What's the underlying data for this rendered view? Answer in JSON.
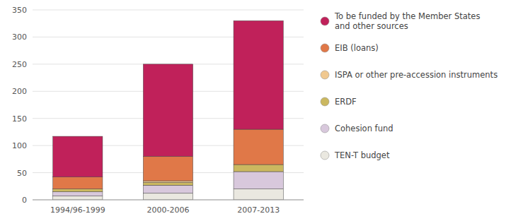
{
  "chart_data": {
    "type": "bar",
    "stacked": true,
    "categories": [
      "1994/96-1999",
      "2000-2006",
      "2007-2013"
    ],
    "series": [
      {
        "name": "TEN-T budget",
        "color": "#eae8e0",
        "values": [
          7,
          12,
          20
        ]
      },
      {
        "name": "Cohesion fund",
        "color": "#d8c8dc",
        "values": [
          8,
          15,
          32
        ]
      },
      {
        "name": "ERDF",
        "color": "#cbb860",
        "values": [
          5,
          5,
          13
        ]
      },
      {
        "name": "ISPA or other pre-accession instruments",
        "color": "#f0c890",
        "values": [
          0,
          3,
          0
        ]
      },
      {
        "name": "EIB (loans)",
        "color": "#e07848",
        "values": [
          22,
          45,
          65
        ]
      },
      {
        "name": "To be funded by the Member States\nand other sources",
        "color": "#c0215a",
        "values": [
          75,
          170,
          200
        ]
      }
    ],
    "ylim": [
      0,
      350
    ],
    "yticks": [
      0,
      50,
      100,
      150,
      200,
      250,
      300,
      350
    ],
    "grid": true,
    "legend": "right"
  }
}
